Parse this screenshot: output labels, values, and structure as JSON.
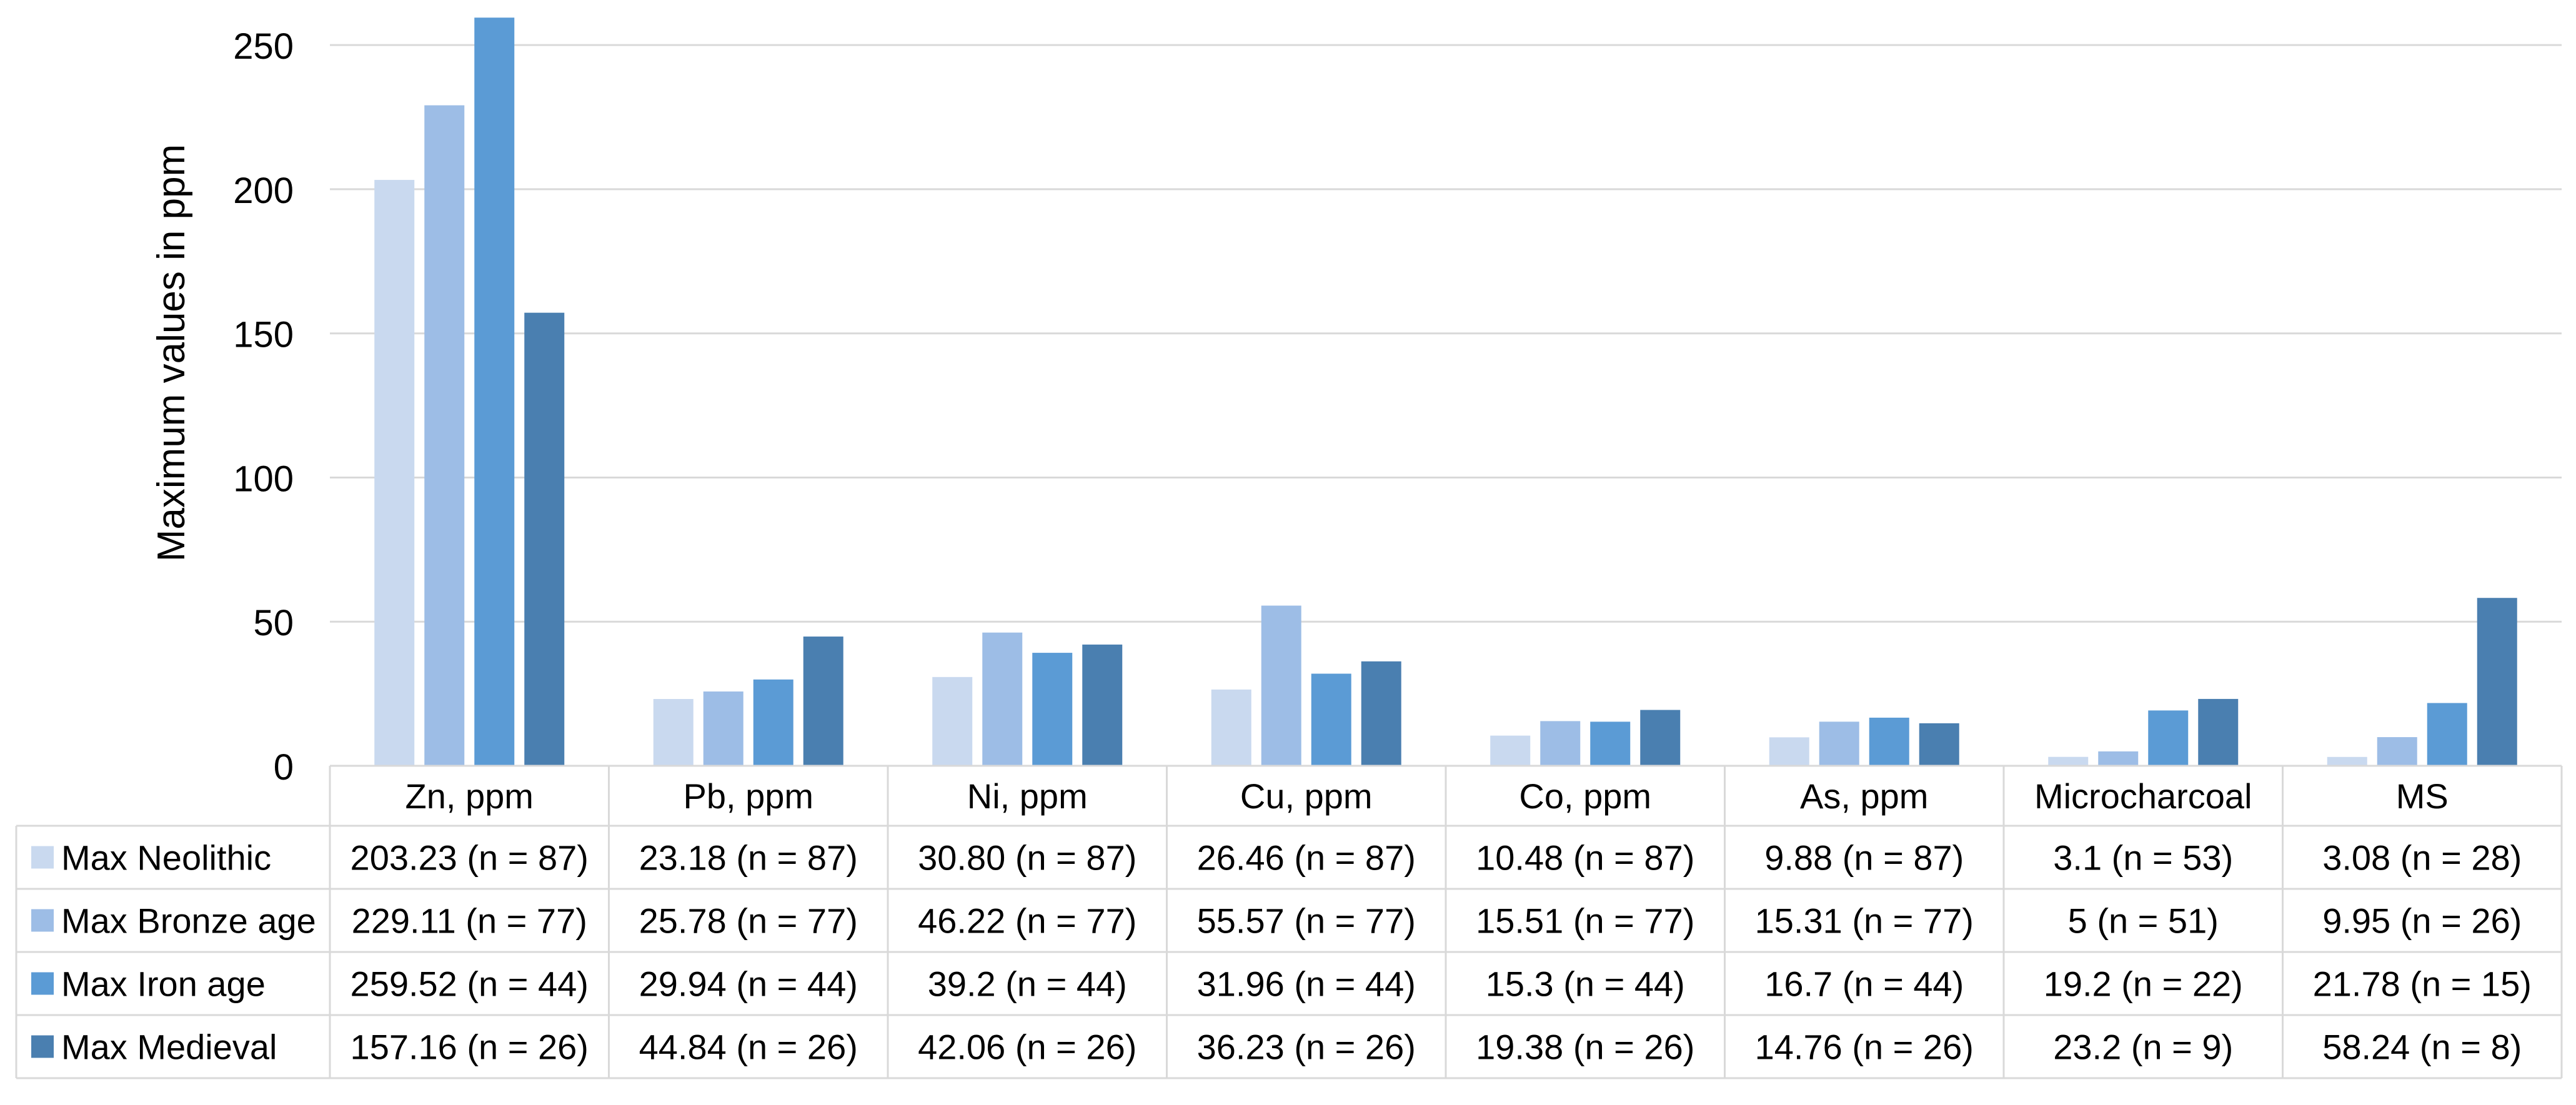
{
  "chart_data": {
    "type": "bar",
    "title": "",
    "xlabel": "",
    "ylabel": "Maximum values in ppm",
    "ylim": [
      0,
      260
    ],
    "yticks": [
      0,
      50,
      100,
      150,
      200,
      250
    ],
    "grid": true,
    "legend": "left-table",
    "categories": [
      "Zn, ppm",
      "Pb, ppm",
      "Ni, ppm",
      "Cu, ppm",
      "Co, ppm",
      "As, ppm",
      "Microcharcoal",
      "MS"
    ],
    "series": [
      {
        "name": "Max Neolithic",
        "color": "#c9d9ef",
        "values": [
          203.23,
          23.18,
          30.8,
          26.46,
          10.48,
          9.88,
          3.1,
          3.08
        ],
        "labels": [
          "203.23 (n = 87)",
          "23.18 (n = 87)",
          "30.80 (n = 87)",
          "26.46 (n = 87)",
          "10.48 (n = 87)",
          "9.88 (n = 87)",
          "3.1 (n = 53)",
          "3.08 (n = 28)"
        ]
      },
      {
        "name": "Max Bronze age",
        "color": "#9dbde6",
        "values": [
          229.11,
          25.78,
          46.22,
          55.57,
          15.51,
          15.31,
          5,
          9.95
        ],
        "labels": [
          "229.11 (n = 77)",
          "25.78 (n = 77)",
          "46.22 (n = 77)",
          "55.57 (n = 77)",
          "15.51 (n = 77)",
          "15.31 (n = 77)",
          "5  (n = 51)",
          "9.95 (n = 26)"
        ]
      },
      {
        "name": "Max Iron age",
        "color": "#5b9bd5",
        "values": [
          259.52,
          29.94,
          39.2,
          31.96,
          15.3,
          16.7,
          19.2,
          21.78
        ],
        "labels": [
          "259.52 (n = 44)",
          "29.94 (n = 44)",
          "39.2 (n = 44)",
          "31.96 (n = 44)",
          "15.3 (n = 44)",
          "16.7 (n = 44)",
          "19.2 (n = 22)",
          "21.78 (n = 15)"
        ]
      },
      {
        "name": "Max Medieval",
        "color": "#4a7fb0",
        "values": [
          157.16,
          44.84,
          42.06,
          36.23,
          19.38,
          14.76,
          23.2,
          58.24
        ],
        "labels": [
          "157.16 (n = 26)",
          "44.84 (n = 26)",
          "42.06 (n = 26)",
          "36.23 (n = 26)",
          "19.38 (n = 26)",
          "14.76 (n = 26)",
          "23.2 (n = 9)",
          "58.24 (n = 8)"
        ]
      }
    ]
  }
}
